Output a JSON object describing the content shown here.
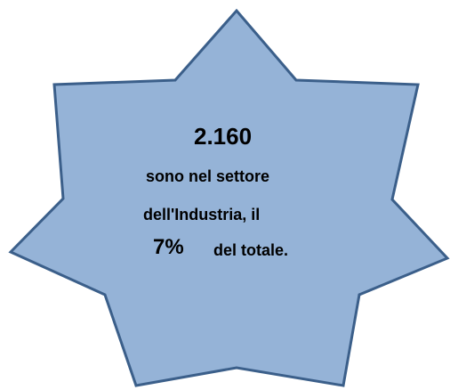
{
  "badge": {
    "headline": "2.160",
    "line1": "sono nel settore",
    "line2": "dell'Industria, il",
    "percent": "7%",
    "line3": "del totale."
  },
  "colors": {
    "star_fill": "#95b3d7",
    "star_stroke": "#3b5f8a",
    "text": "#000000"
  }
}
